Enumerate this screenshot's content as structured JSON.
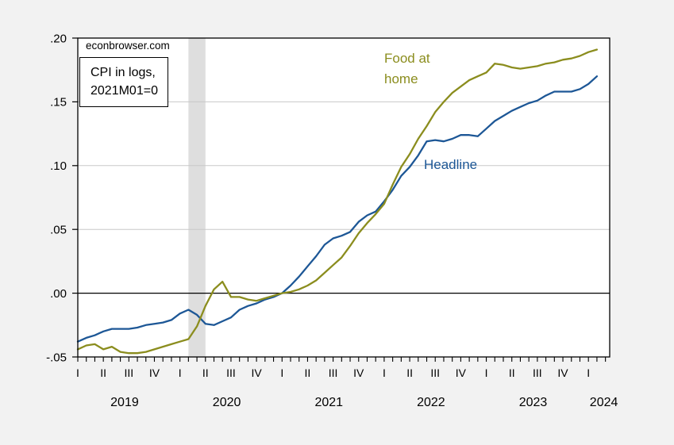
{
  "watermark": "econbrowser.com",
  "note_box": {
    "line1": "CPI in logs,",
    "line2": "2021M01=0"
  },
  "colors": {
    "headline": "#1d5796",
    "food_at_home": "#8b8d1e",
    "recession_band": "#dedede",
    "grid": "#c8c8c8",
    "zero_line": "#000000",
    "frame": "#000000",
    "plot_bg": "#ffffff",
    "figure_bg": "#f2f2f2"
  },
  "chart_data": {
    "type": "line",
    "title": "",
    "frequency": "monthly",
    "x_start": "2019M01",
    "x_end": "2024M02",
    "ylim": [
      -0.05,
      0.2
    ],
    "grid": "horizontal",
    "yticks": [
      {
        "value": 0.2,
        "label": ".20"
      },
      {
        "value": 0.15,
        "label": ".15"
      },
      {
        "value": 0.1,
        "label": ".10"
      },
      {
        "value": 0.05,
        "label": ".05"
      },
      {
        "value": 0.0,
        "label": ".00"
      },
      {
        "value": -0.05,
        "label": "-.05"
      }
    ],
    "x_axis": {
      "quarter_labels": [
        "I",
        "II",
        "III",
        "IV",
        "I",
        "II",
        "III",
        "IV",
        "I",
        "II",
        "III",
        "IV",
        "I",
        "II",
        "III",
        "IV",
        "I",
        "II",
        "III",
        "IV",
        "I"
      ],
      "year_labels": [
        "2019",
        "2020",
        "2021",
        "2022",
        "2023",
        "2024"
      ]
    },
    "recession_band": {
      "from": "2020M02",
      "to": "2020M04"
    },
    "series": [
      {
        "name": "Headline",
        "color_key": "headline",
        "values": [
          -0.038,
          -0.035,
          -0.033,
          -0.03,
          -0.028,
          -0.028,
          -0.028,
          -0.027,
          -0.025,
          -0.024,
          -0.023,
          -0.021,
          -0.016,
          -0.013,
          -0.017,
          -0.024,
          -0.025,
          -0.022,
          -0.019,
          -0.013,
          -0.01,
          -0.008,
          -0.005,
          -0.003,
          0.0,
          0.006,
          0.013,
          0.021,
          0.029,
          0.038,
          0.043,
          0.045,
          0.048,
          0.056,
          0.061,
          0.064,
          0.072,
          0.081,
          0.092,
          0.099,
          0.108,
          0.119,
          0.12,
          0.119,
          0.121,
          0.124,
          0.124,
          0.123,
          0.129,
          0.135,
          0.139,
          0.143,
          0.146,
          0.149,
          0.151,
          0.155,
          0.158,
          0.158,
          0.158,
          0.16,
          0.164,
          0.17
        ]
      },
      {
        "name": "Food at home",
        "color_key": "food_at_home",
        "values": [
          -0.044,
          -0.041,
          -0.04,
          -0.044,
          -0.042,
          -0.046,
          -0.047,
          -0.047,
          -0.046,
          -0.044,
          -0.042,
          -0.04,
          -0.038,
          -0.036,
          -0.026,
          -0.01,
          0.003,
          0.009,
          -0.003,
          -0.003,
          -0.005,
          -0.006,
          -0.004,
          -0.002,
          0.0,
          0.001,
          0.003,
          0.006,
          0.01,
          0.016,
          0.022,
          0.028,
          0.037,
          0.047,
          0.055,
          0.062,
          0.07,
          0.085,
          0.099,
          0.109,
          0.121,
          0.131,
          0.142,
          0.15,
          0.157,
          0.162,
          0.167,
          0.17,
          0.173,
          0.18,
          0.179,
          0.177,
          0.176,
          0.177,
          0.178,
          0.18,
          0.181,
          0.183,
          0.184,
          0.186,
          0.189,
          0.191
        ]
      }
    ]
  }
}
